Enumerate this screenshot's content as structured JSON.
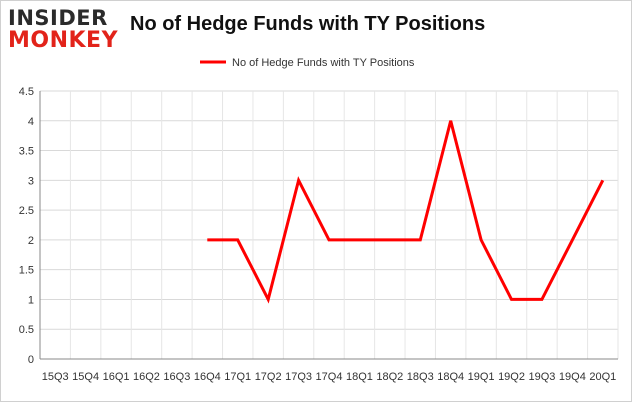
{
  "logo": {
    "line1": "INSIDER",
    "line2": "MONKEY"
  },
  "chart_data": {
    "type": "line",
    "title": "No of Hedge Funds with TY Positions",
    "xlabel": "",
    "ylabel": "",
    "categories": [
      "15Q3",
      "15Q4",
      "16Q1",
      "16Q2",
      "16Q3",
      "16Q4",
      "17Q1",
      "17Q2",
      "17Q3",
      "17Q4",
      "18Q1",
      "18Q2",
      "18Q3",
      "18Q4",
      "19Q1",
      "19Q2",
      "19Q3",
      "19Q4",
      "20Q1"
    ],
    "series": [
      {
        "name": "No of Hedge Funds with TY Positions",
        "color": "#ff0000",
        "values": [
          null,
          null,
          null,
          null,
          null,
          2,
          2,
          1,
          3,
          2,
          2,
          2,
          2,
          4,
          2,
          1,
          1,
          2,
          3
        ]
      }
    ],
    "ylim": [
      0,
      4.5
    ],
    "yticks": [
      "0",
      "0.5",
      "1",
      "1.5",
      "2",
      "2.5",
      "3",
      "3.5",
      "4",
      "4.5"
    ],
    "grid": true,
    "legend": "top-center"
  }
}
